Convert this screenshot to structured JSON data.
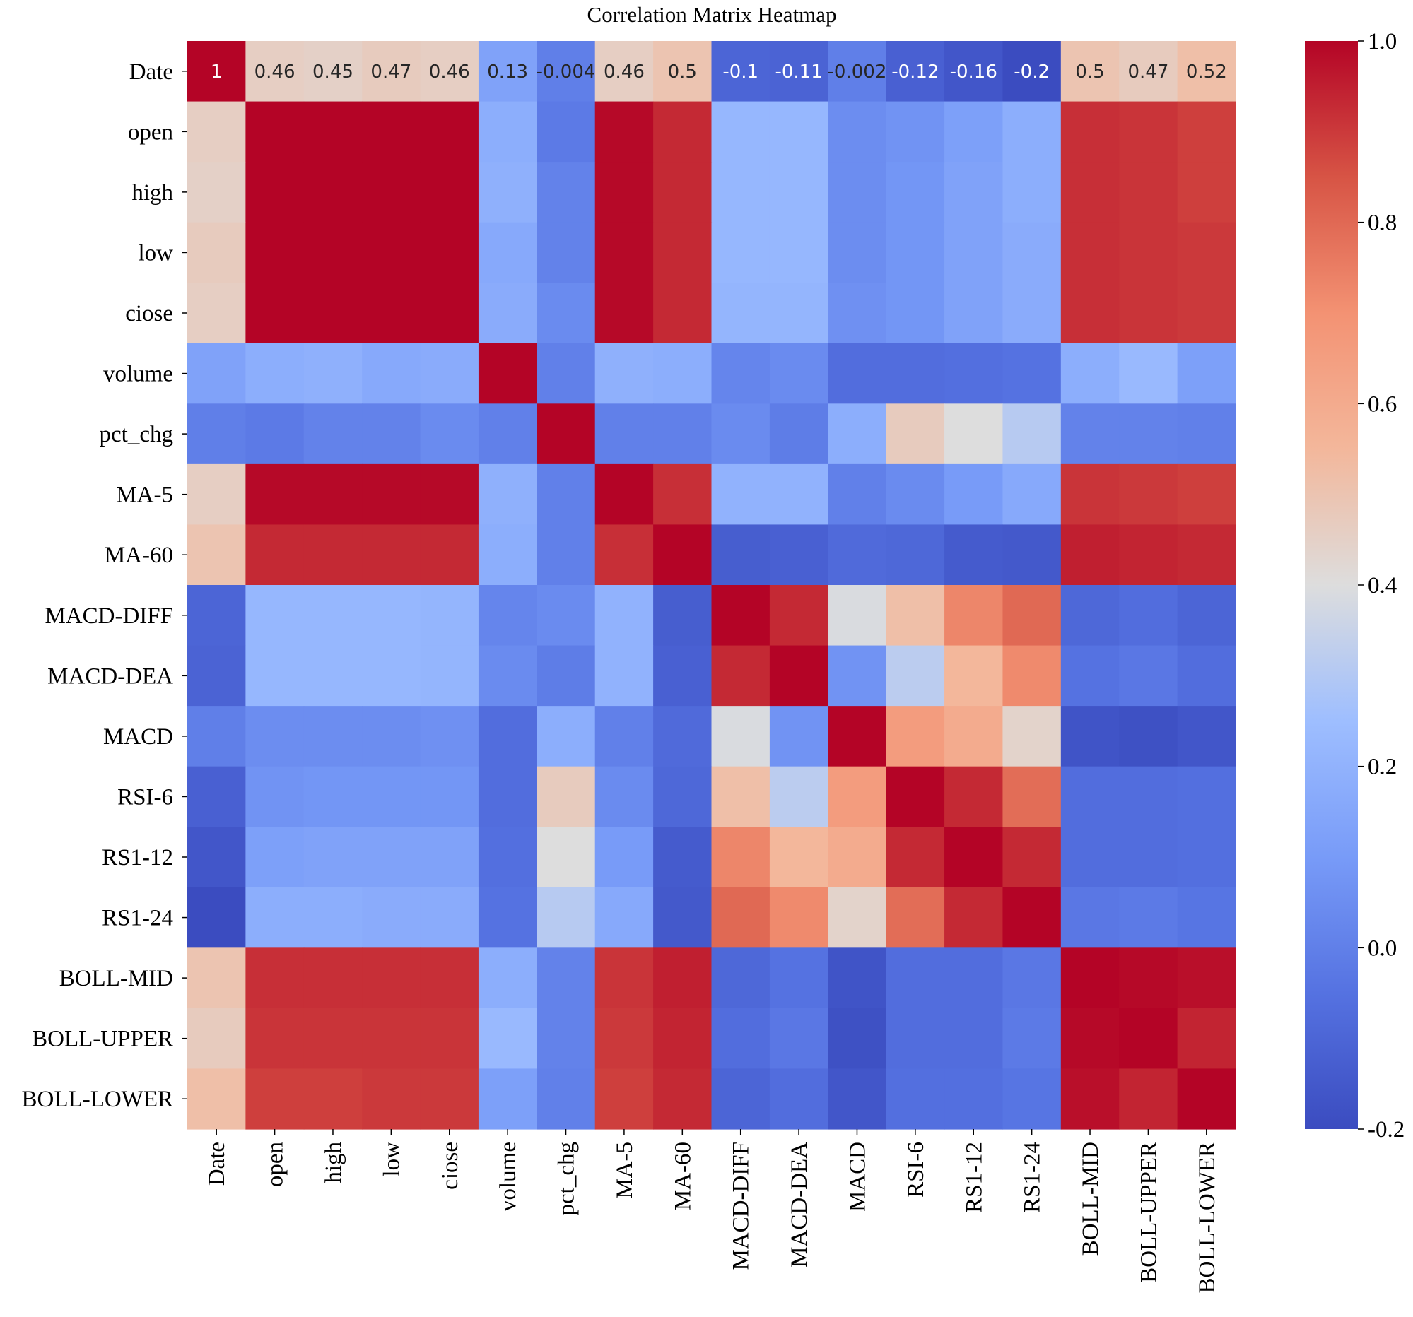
{
  "chart_data": {
    "type": "heatmap",
    "title": "Correlation Matrix Heatmap",
    "xlabel": "",
    "ylabel": "",
    "colormap": "coolwarm",
    "vmin": -0.2,
    "vmax": 1.0,
    "labels": [
      "Date",
      "open",
      "high",
      "low",
      "ciose",
      "volume",
      "pct_chg",
      "MA-5",
      "MA-60",
      "MACD-DIFF",
      "MACD-DEA",
      "MACD",
      "RSI-6",
      "RS1-12",
      "RS1-24",
      "BOLL-MID",
      "BOLL-UPPER",
      "BOLL-LOWER"
    ],
    "annotations": {
      "row": 0,
      "text": [
        "1",
        "0.46",
        "0.45",
        "0.47",
        "0.46",
        "0.13",
        "-0.004",
        "0.46",
        "0.5",
        "-0.1",
        "-0.11",
        "-0.002",
        "-0.12",
        "-0.16",
        "-0.2",
        "0.5",
        "0.47",
        "0.52"
      ]
    },
    "colorbar_ticks": [
      "1.0",
      "0.8",
      "0.6",
      "0.4",
      "0.2",
      "0.0",
      "-0.2"
    ],
    "colorbar_tick_values": [
      1.0,
      0.8,
      0.6,
      0.4,
      0.2,
      0.0,
      -0.2
    ],
    "matrix": [
      [
        1.0,
        0.46,
        0.45,
        0.47,
        0.46,
        0.13,
        -0.004,
        0.46,
        0.5,
        -0.1,
        -0.11,
        -0.002,
        -0.12,
        -0.16,
        -0.2,
        0.5,
        0.47,
        0.52
      ],
      [
        0.46,
        1.0,
        1.0,
        1.0,
        1.0,
        0.18,
        -0.02,
        0.99,
        0.93,
        0.22,
        0.22,
        0.05,
        0.07,
        0.12,
        0.18,
        0.92,
        0.91,
        0.89
      ],
      [
        0.45,
        1.0,
        1.0,
        1.0,
        1.0,
        0.19,
        0.01,
        0.99,
        0.93,
        0.22,
        0.22,
        0.05,
        0.08,
        0.13,
        0.18,
        0.92,
        0.91,
        0.89
      ],
      [
        0.47,
        1.0,
        1.0,
        1.0,
        1.0,
        0.16,
        0.01,
        0.99,
        0.93,
        0.22,
        0.22,
        0.05,
        0.08,
        0.13,
        0.17,
        0.92,
        0.91,
        0.9
      ],
      [
        0.46,
        1.0,
        1.0,
        1.0,
        1.0,
        0.17,
        0.04,
        0.99,
        0.93,
        0.21,
        0.21,
        0.06,
        0.08,
        0.13,
        0.17,
        0.92,
        0.91,
        0.9
      ],
      [
        0.13,
        0.18,
        0.19,
        0.16,
        0.17,
        1.0,
        0.0,
        0.19,
        0.18,
        0.02,
        0.04,
        -0.07,
        -0.07,
        -0.06,
        -0.05,
        0.18,
        0.23,
        0.12
      ],
      [
        -0.004,
        -0.02,
        0.01,
        0.01,
        0.04,
        0.0,
        1.0,
        0.0,
        0.0,
        0.04,
        -0.01,
        0.18,
        0.47,
        0.4,
        0.31,
        0.01,
        0.01,
        0.0
      ],
      [
        0.46,
        0.99,
        0.99,
        0.99,
        0.99,
        0.19,
        0.0,
        1.0,
        0.92,
        0.2,
        0.2,
        0.0,
        0.04,
        0.1,
        0.16,
        0.91,
        0.9,
        0.89
      ],
      [
        0.5,
        0.93,
        0.93,
        0.93,
        0.93,
        0.18,
        0.0,
        0.92,
        1.0,
        -0.13,
        -0.12,
        -0.08,
        -0.09,
        -0.14,
        -0.15,
        0.95,
        0.94,
        0.93
      ],
      [
        -0.1,
        0.22,
        0.22,
        0.22,
        0.21,
        0.02,
        0.04,
        0.2,
        -0.13,
        1.0,
        0.93,
        0.39,
        0.52,
        0.73,
        0.8,
        -0.09,
        -0.07,
        -0.1
      ],
      [
        -0.11,
        0.22,
        0.22,
        0.22,
        0.21,
        0.04,
        -0.01,
        0.2,
        -0.12,
        0.93,
        1.0,
        0.07,
        0.32,
        0.55,
        0.72,
        -0.05,
        -0.03,
        -0.07
      ],
      [
        -0.002,
        0.05,
        0.05,
        0.05,
        0.06,
        -0.07,
        0.18,
        0.0,
        -0.08,
        0.39,
        0.07,
        1.0,
        0.66,
        0.6,
        0.44,
        -0.17,
        -0.18,
        -0.16
      ],
      [
        -0.12,
        0.07,
        0.08,
        0.08,
        0.08,
        -0.07,
        0.47,
        0.04,
        -0.09,
        0.52,
        0.32,
        0.66,
        1.0,
        0.93,
        0.79,
        -0.07,
        -0.07,
        -0.06
      ],
      [
        -0.16,
        0.12,
        0.13,
        0.13,
        0.13,
        -0.06,
        0.4,
        0.1,
        -0.14,
        0.73,
        0.55,
        0.6,
        0.93,
        1.0,
        0.93,
        -0.07,
        -0.07,
        -0.06
      ],
      [
        -0.2,
        0.18,
        0.18,
        0.17,
        0.17,
        -0.05,
        0.31,
        0.16,
        -0.15,
        0.8,
        0.72,
        0.44,
        0.79,
        0.93,
        1.0,
        -0.03,
        -0.02,
        -0.04
      ],
      [
        0.5,
        0.92,
        0.92,
        0.92,
        0.92,
        0.18,
        0.01,
        0.91,
        0.95,
        -0.09,
        -0.05,
        -0.17,
        -0.07,
        -0.07,
        -0.03,
        1.0,
        0.99,
        0.98
      ],
      [
        0.47,
        0.91,
        0.91,
        0.91,
        0.91,
        0.23,
        0.01,
        0.9,
        0.94,
        -0.07,
        -0.03,
        -0.18,
        -0.07,
        -0.07,
        -0.02,
        0.99,
        1.0,
        0.94
      ],
      [
        0.52,
        0.89,
        0.89,
        0.9,
        0.9,
        0.12,
        0.0,
        0.89,
        0.93,
        -0.1,
        -0.07,
        -0.16,
        -0.06,
        -0.06,
        -0.04,
        0.98,
        0.94,
        1.0
      ]
    ]
  }
}
